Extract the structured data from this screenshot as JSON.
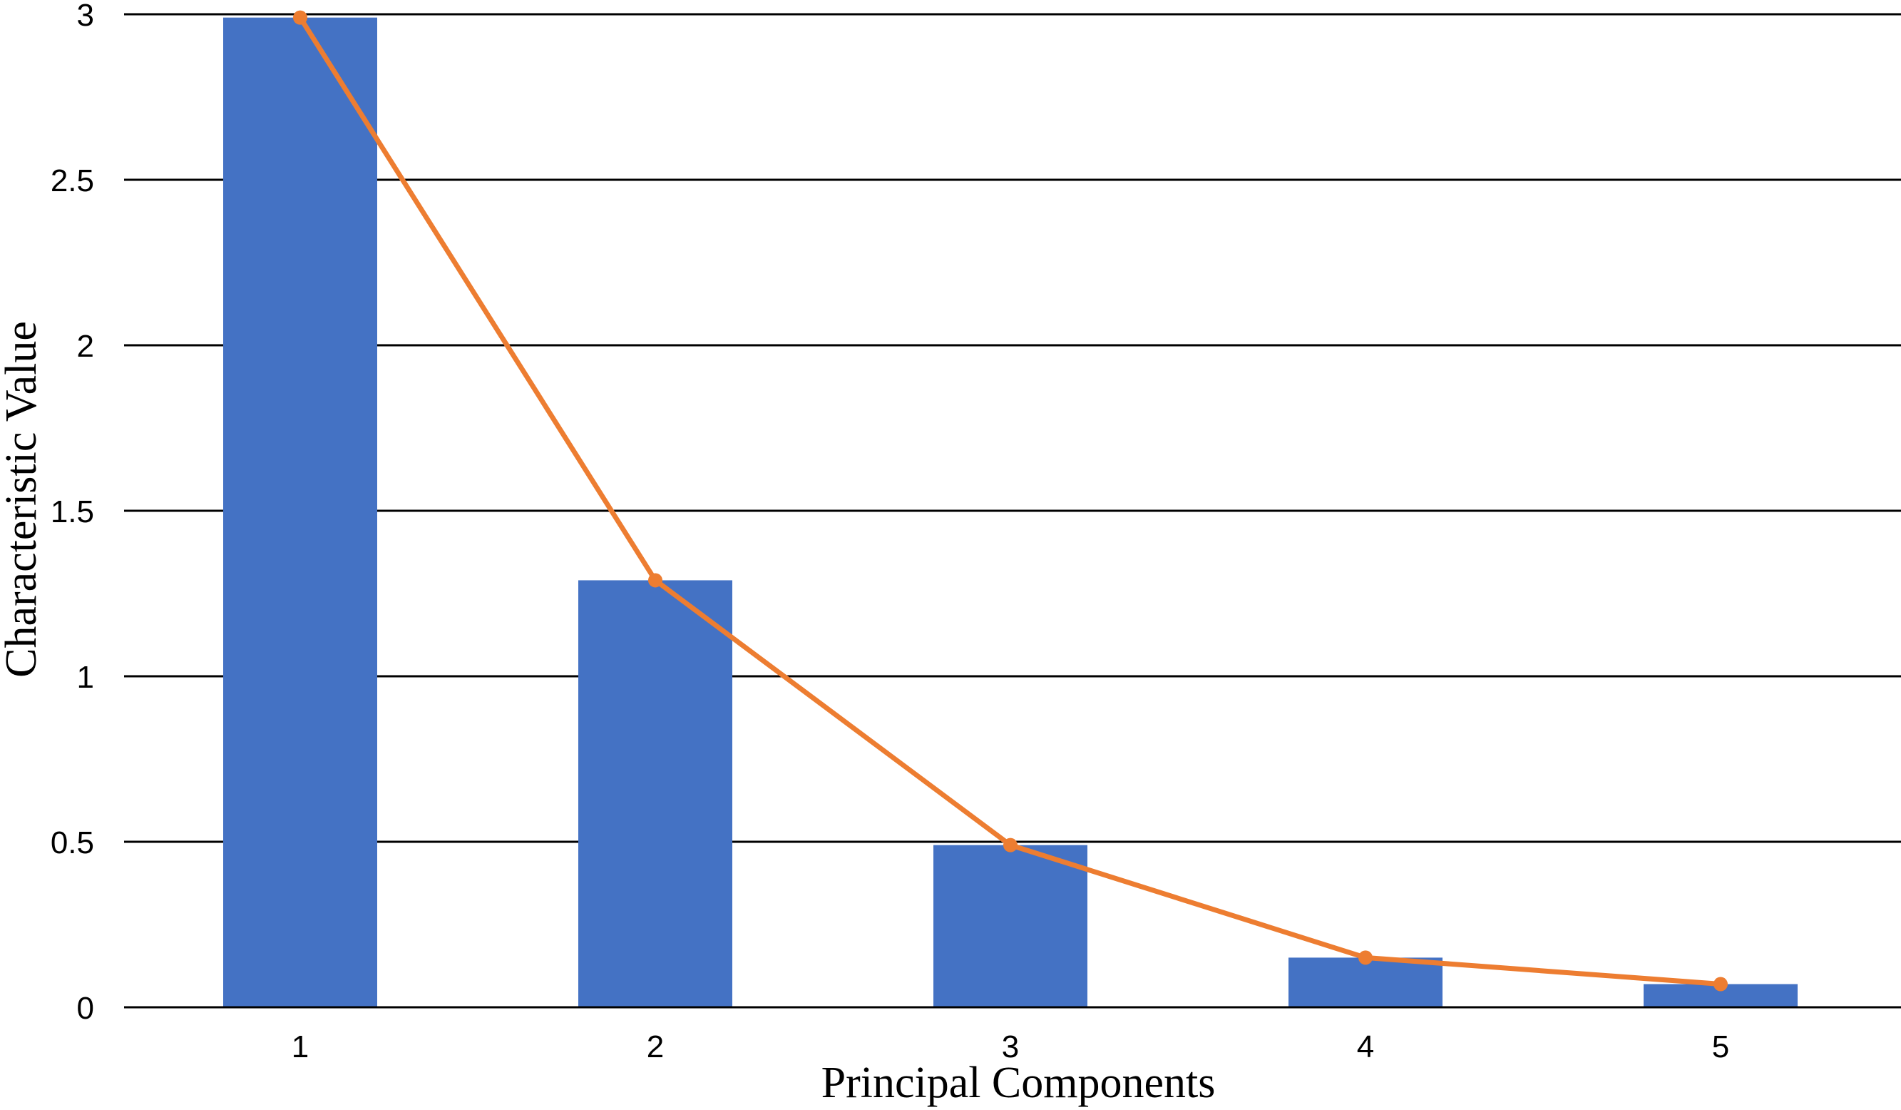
{
  "chart_data": {
    "type": "bar",
    "title": "",
    "xlabel": "Principal Components",
    "ylabel": "Characteristic Value",
    "categories": [
      "1",
      "2",
      "3",
      "4",
      "5"
    ],
    "ylim": [
      0,
      3
    ],
    "yticks": [
      "0",
      "0.5",
      "1",
      "1.5",
      "2",
      "2.5",
      "3"
    ],
    "grid": true,
    "legend": "none",
    "series": [
      {
        "type": "bar",
        "values": [
          2.99,
          1.29,
          0.49,
          0.15,
          0.07
        ],
        "color": "#4472C4"
      },
      {
        "type": "line",
        "values": [
          2.99,
          1.29,
          0.49,
          0.15,
          0.07
        ],
        "color": "#ED7D31",
        "markers": true
      }
    ]
  }
}
